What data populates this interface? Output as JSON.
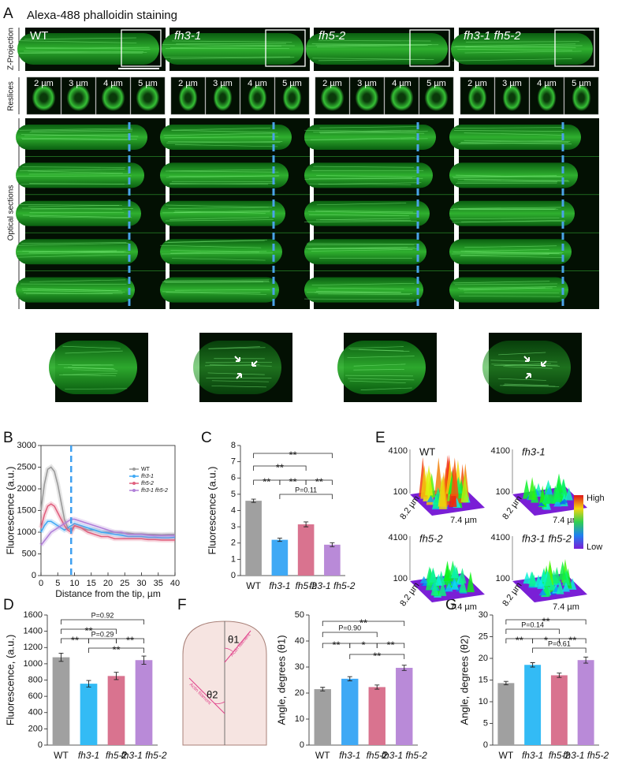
{
  "panel_labels": [
    "A",
    "B",
    "C",
    "D",
    "E",
    "F",
    "G"
  ],
  "panel_a": {
    "title": "Alexa-488 phalloidin staining",
    "genotypes": [
      "WT",
      "fh3-1",
      "fh5-2",
      "fh3-1 fh5-2"
    ],
    "row_labels": [
      "Z-Projection",
      "Reslices",
      "Optical sections"
    ],
    "reslice_depths": [
      "2 µm",
      "3 µm",
      "4 µm",
      "5 µm"
    ]
  },
  "panel_e": {
    "genotypes": [
      "WT",
      "fh3-1",
      "fh5-2",
      "fh3-1 fh5-2"
    ],
    "z_max": "4100",
    "z_min": "100",
    "y_extent": "8.2 µm",
    "x_extent": "7.4 µm",
    "scale_high": "High",
    "scale_low": "Low"
  },
  "panel_f_diagram": {
    "theta1": "θ1",
    "theta2": "θ2",
    "filament_label": "Actin filament"
  },
  "chart_data": [
    {
      "type": "line",
      "x": [
        0,
        1,
        2,
        3,
        4,
        5,
        6,
        7,
        8,
        9,
        10,
        12,
        14,
        16,
        18,
        20,
        22,
        24,
        26,
        28,
        30,
        32,
        34,
        36,
        38,
        40
      ],
      "series": [
        {
          "name": "WT",
          "color": "#9a9a9a",
          "values": [
            1500,
            2100,
            2450,
            2500,
            2400,
            2100,
            1700,
            1300,
            1100,
            1050,
            1150,
            1100,
            1050,
            1050,
            1000,
            1000,
            1000,
            980,
            980,
            960,
            960,
            950,
            950,
            940,
            950,
            950
          ]
        },
        {
          "name": "fh3-1",
          "color": "#3fa9f5",
          "values": [
            1000,
            1150,
            1250,
            1250,
            1200,
            1150,
            1100,
            1050,
            1100,
            1150,
            1200,
            1150,
            1100,
            1050,
            1000,
            980,
            950,
            930,
            900,
            900,
            900,
            880,
            880,
            870,
            870,
            880
          ]
        },
        {
          "name": "fh5-2",
          "color": "#e0607e",
          "values": [
            1100,
            1400,
            1600,
            1650,
            1600,
            1450,
            1300,
            1150,
            1050,
            1000,
            1150,
            1100,
            1000,
            950,
            900,
            900,
            850,
            850,
            850,
            850,
            850,
            830,
            830,
            820,
            820,
            820
          ]
        },
        {
          "name": "fh3-1 fh5-2",
          "color": "#b07fd8",
          "values": [
            700,
            800,
            900,
            1000,
            1050,
            1100,
            1150,
            1200,
            1250,
            1300,
            1300,
            1250,
            1200,
            1150,
            1100,
            1050,
            1000,
            1000,
            950,
            950,
            950,
            930,
            920,
            920,
            920,
            920
          ]
        }
      ],
      "reference_line_x": 9,
      "xlim": [
        0,
        40
      ],
      "xticks": [
        0,
        5,
        10,
        15,
        20,
        25,
        30,
        35,
        40
      ],
      "ylim": [
        0,
        3000
      ],
      "yticks": [
        0,
        500,
        1000,
        1500,
        2000,
        2500,
        3000
      ],
      "x_label": "Distance from the tip, µm",
      "y_label": "Fluorescence (a.u.)",
      "legend": "upper right"
    },
    {
      "type": "bar",
      "categories": [
        "WT",
        "fh3-1",
        "fh5-2",
        "fh3-1 fh5-2"
      ],
      "values": [
        4.6,
        2.2,
        3.15,
        1.9
      ],
      "errors": [
        0.1,
        0.1,
        0.15,
        0.12
      ],
      "colors": [
        "#a0a0a0",
        "#3fa9f5",
        "#d9738f",
        "#b98ad8"
      ],
      "ylim": [
        0,
        8
      ],
      "yticks": [
        0,
        1,
        2,
        3,
        4,
        5,
        6,
        7,
        8
      ],
      "y_label": "Fluorescence (a.u.)",
      "annotations": [
        "**",
        "**",
        "**",
        "**",
        "**",
        "P=0.11"
      ]
    },
    {
      "type": "bar",
      "categories": [
        "WT",
        "fh3-1",
        "fh5-2",
        "fh3-1 fh5-2"
      ],
      "values": [
        1080,
        755,
        850,
        1045
      ],
      "errors": [
        50,
        40,
        45,
        50
      ],
      "colors": [
        "#a0a0a0",
        "#33bbf5",
        "#d9738f",
        "#b98ad8"
      ],
      "ylim": [
        0,
        1600
      ],
      "yticks": [
        0,
        200,
        400,
        600,
        800,
        1000,
        1200,
        1400,
        1600
      ],
      "y_label": "Fluorescence, (a.u.)",
      "annotations": [
        "P=0.92",
        "**",
        "**",
        "P=0.29",
        "**",
        "**"
      ]
    },
    {
      "type": "bar",
      "categories": [
        "WT",
        "fh3-1",
        "fh5-2",
        "fh3-1 fh5-2"
      ],
      "values": [
        21.5,
        25.5,
        22.3,
        29.7
      ],
      "errors": [
        0.7,
        0.8,
        0.8,
        1
      ],
      "colors": [
        "#a0a0a0",
        "#3fa9f5",
        "#d9738f",
        "#b98ad8"
      ],
      "ylim": [
        0,
        50
      ],
      "yticks": [
        0,
        10,
        20,
        30,
        40,
        50
      ],
      "y_label": "Angle, degrees (θ1)",
      "annotations": [
        "**",
        "P=0.90",
        "**",
        "*",
        "**",
        "**"
      ]
    },
    {
      "type": "bar",
      "categories": [
        "WT",
        "fh3-1",
        "fh5-2",
        "fh3-1 fh5-2"
      ],
      "values": [
        14.3,
        18.5,
        16.1,
        19.6
      ],
      "errors": [
        0.4,
        0.5,
        0.5,
        0.7
      ],
      "colors": [
        "#a0a0a0",
        "#33bbf5",
        "#d9738f",
        "#b98ad8"
      ],
      "ylim": [
        0,
        30
      ],
      "yticks": [
        0,
        5,
        10,
        15,
        20,
        25,
        30
      ],
      "y_label": "Angle, degrees (θ2)",
      "annotations": [
        "**",
        "P=0.14",
        "**",
        "*",
        "**",
        "P=0.61"
      ]
    }
  ]
}
